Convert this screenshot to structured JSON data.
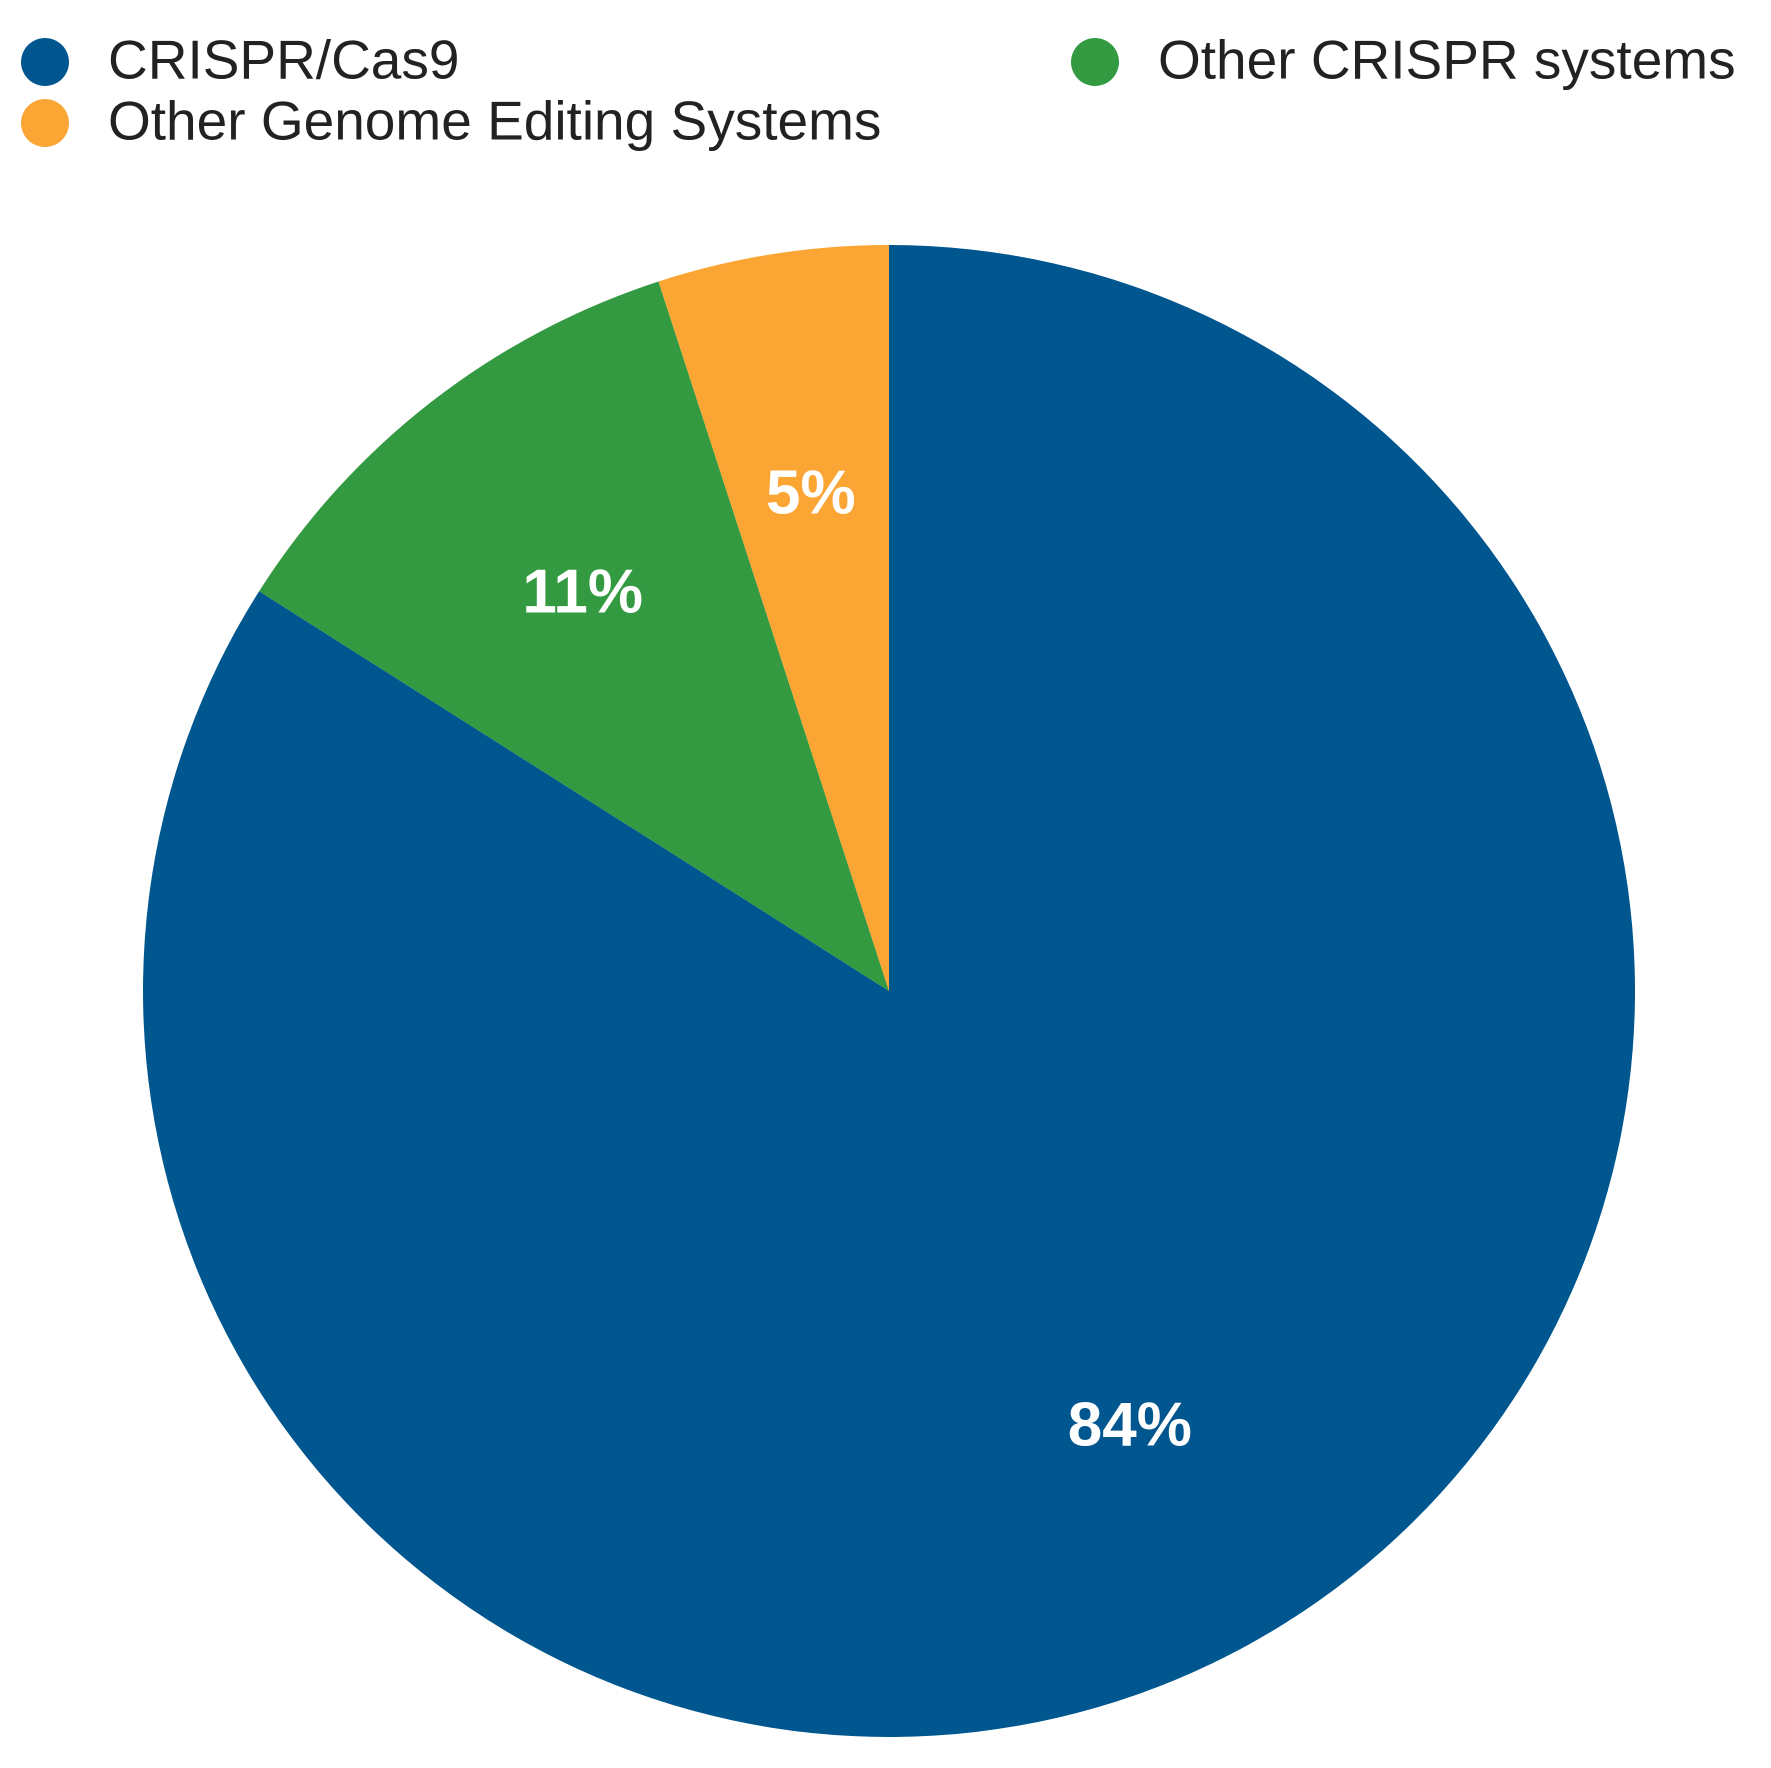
{
  "chart_data": {
    "type": "pie",
    "categories": [
      "CRISPR/Cas9",
      "Other CRISPR systems",
      "Other Genome Editing Systems"
    ],
    "values": [
      84,
      11,
      5
    ],
    "value_labels": [
      "84%",
      "11%",
      "5%"
    ],
    "colors": [
      "#00568f",
      "#339a41",
      "#fba535"
    ],
    "legend": "top"
  }
}
